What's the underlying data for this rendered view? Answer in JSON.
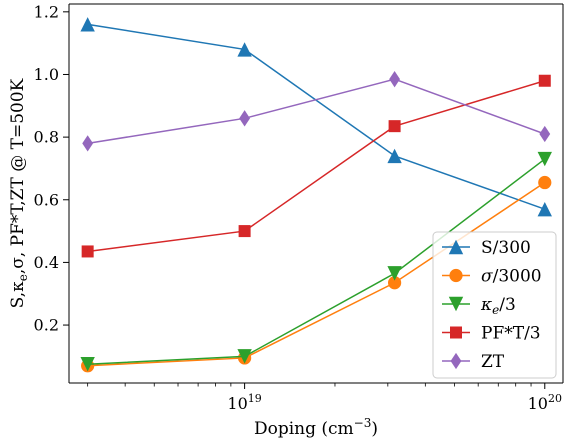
{
  "chart_data": {
    "type": "line",
    "xscale": "log",
    "xlabel_base": "Doping (cm",
    "xlabel_exp": "−3",
    "xlabel_tail": ")",
    "ylabel_tex": [
      "S,κ",
      "e",
      ",σ, PF*T,ZT @ T=500K"
    ],
    "xlim": [
      2.6e+18,
      1.15e+20
    ],
    "ylim": [
      0.015,
      1.225
    ],
    "x": [
      3e+18,
      1e+19,
      3.16e+19,
      1e+20
    ],
    "x_ticks": [
      {
        "value": 1e+19,
        "base": "10",
        "exp": "19"
      },
      {
        "value": 1e+20,
        "base": "10",
        "exp": "20"
      }
    ],
    "y_ticks": [
      {
        "value": 0.2,
        "label": "0.2"
      },
      {
        "value": 0.4,
        "label": "0.4"
      },
      {
        "value": 0.6,
        "label": "0.6"
      },
      {
        "value": 0.8,
        "label": "0.8"
      },
      {
        "value": 1.0,
        "label": "1.0"
      },
      {
        "value": 1.2,
        "label": "1.2"
      }
    ],
    "grid": false,
    "legend_position": "lower-right",
    "series": [
      {
        "name": "S/300",
        "label_parts": [
          "S/300"
        ],
        "color": "#1f77b4",
        "marker": "triangle-up",
        "values": [
          1.16,
          1.08,
          0.74,
          0.57
        ]
      },
      {
        "name": "σ/3000",
        "label_parts": [
          "σ",
          "/3000"
        ],
        "label_style": "italic-first",
        "color": "#ff7f0e",
        "marker": "circle",
        "values": [
          0.07,
          0.095,
          0.335,
          0.655
        ]
      },
      {
        "name": "κ_e/3",
        "label_parts": [
          "κ",
          "e",
          "/3"
        ],
        "label_style": "italic-sub",
        "color": "#2ca02c",
        "marker": "triangle-down",
        "values": [
          0.075,
          0.1,
          0.365,
          0.73
        ]
      },
      {
        "name": "PF*T/3",
        "label_parts": [
          "PF*T/3"
        ],
        "color": "#d62728",
        "marker": "square",
        "values": [
          0.435,
          0.5,
          0.835,
          0.98
        ]
      },
      {
        "name": "ZT",
        "label_parts": [
          "ZT"
        ],
        "color": "#9467bd",
        "marker": "diamond",
        "values": [
          0.78,
          0.86,
          0.985,
          0.81
        ]
      }
    ]
  }
}
